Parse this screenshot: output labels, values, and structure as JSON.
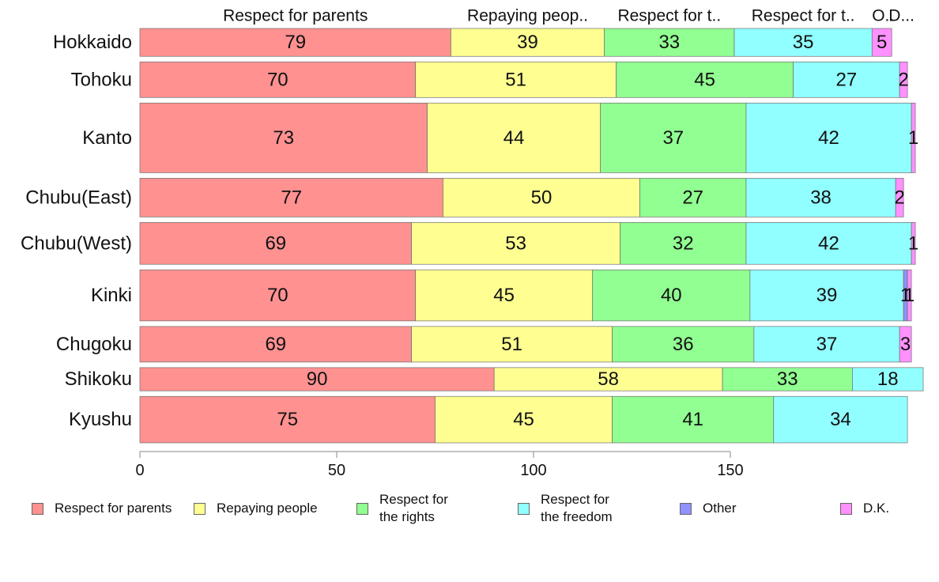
{
  "chart_data": {
    "type": "bar",
    "orientation": "horizontal",
    "stacked": true,
    "title": "",
    "xlabel": "",
    "ylabel": "",
    "xlim": [
      0,
      195
    ],
    "xticks": [
      0,
      50,
      100,
      150
    ],
    "grid": false,
    "legend_position": "bottom",
    "series_header_labels": [
      "Respect for parents",
      "Repaying peop..",
      "Respect for t..",
      "Respect for t..",
      "O..",
      "D..."
    ],
    "categories": [
      "Hokkaido",
      "Tohoku",
      "Kanto",
      "Chubu(East)",
      "Chubu(West)",
      "Kinki",
      "Chugoku",
      "Shikoku",
      "Kyushu"
    ],
    "category_weights": [
      0.9,
      1.15,
      2.25,
      1.25,
      1.35,
      1.65,
      1.15,
      0.75,
      1.5
    ],
    "series": [
      {
        "name": "Respect for parents",
        "color": "#ff9191",
        "values": [
          79,
          70,
          73,
          77,
          69,
          70,
          69,
          90,
          75
        ]
      },
      {
        "name": "Repaying people",
        "color": "#ffff91",
        "values": [
          39,
          51,
          44,
          50,
          53,
          45,
          51,
          58,
          45
        ]
      },
      {
        "name": "Respect for the rights",
        "color": "#91ff91",
        "values": [
          33,
          45,
          37,
          27,
          32,
          40,
          36,
          33,
          41
        ]
      },
      {
        "name": "Respect for the freedom",
        "color": "#91ffff",
        "values": [
          35,
          27,
          42,
          38,
          42,
          39,
          37,
          18,
          34
        ]
      },
      {
        "name": "Other",
        "color": "#9191ff",
        "values": [
          0,
          0,
          0,
          0,
          0,
          1,
          0,
          0,
          0
        ]
      },
      {
        "name": "D.K.",
        "color": "#ff91ff",
        "values": [
          5,
          2,
          1,
          2,
          1,
          1,
          3,
          0,
          0
        ]
      }
    ]
  },
  "legend": [
    {
      "label": "Respect for parents"
    },
    {
      "label": "Repaying people"
    },
    {
      "label": "Respect for\nthe rights"
    },
    {
      "label": "Respect for\nthe freedom"
    },
    {
      "label": "Other"
    },
    {
      "label": "D.K."
    }
  ]
}
